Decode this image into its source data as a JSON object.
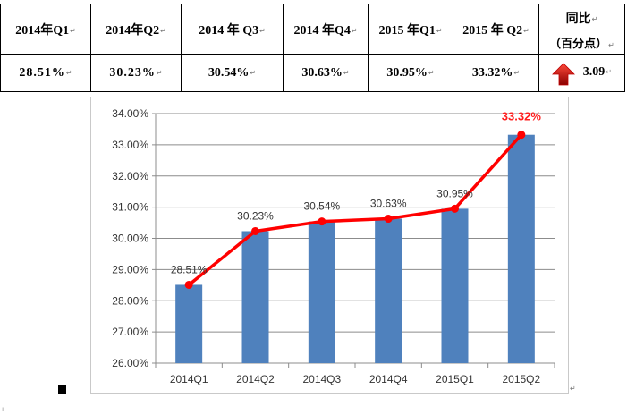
{
  "table": {
    "headers": [
      "2014年Q1",
      "2014年Q2",
      "2014 年 Q3",
      "2014 年Q4",
      "2015 年Q1",
      "2015 年 Q2"
    ],
    "values": [
      "28.51%",
      "30.23%",
      "30.54%",
      "30.63%",
      "30.95%",
      "33.32%"
    ],
    "change_header_line1": "同比",
    "change_header_line2": "（百分点）",
    "change_value": "3.09",
    "change_direction": "up",
    "arrow_color": "#c00000",
    "cell_mark": "↵"
  },
  "chart_data": {
    "type": "bar",
    "overlay_line": true,
    "categories": [
      "2014Q1",
      "2014Q2",
      "2014Q3",
      "2014Q4",
      "2015Q1",
      "2015Q2"
    ],
    "values": [
      28.51,
      30.23,
      30.54,
      30.63,
      30.95,
      33.32
    ],
    "data_labels": [
      "28.51%",
      "30.23%",
      "30.54%",
      "30.63%",
      "30.95%",
      "33.32%"
    ],
    "highlight_last_label": true,
    "ylim": [
      26,
      34
    ],
    "ytick_step": 1,
    "ytick_labels": [
      "26.00%",
      "27.00%",
      "28.00%",
      "29.00%",
      "30.00%",
      "31.00%",
      "32.00%",
      "33.00%",
      "34.00%"
    ],
    "grid": true,
    "bar_color": "#4f81bd",
    "line_color": "#ff0000",
    "highlight_label_color": "#ff1f1f",
    "title": "",
    "xlabel": "",
    "ylabel": ""
  }
}
